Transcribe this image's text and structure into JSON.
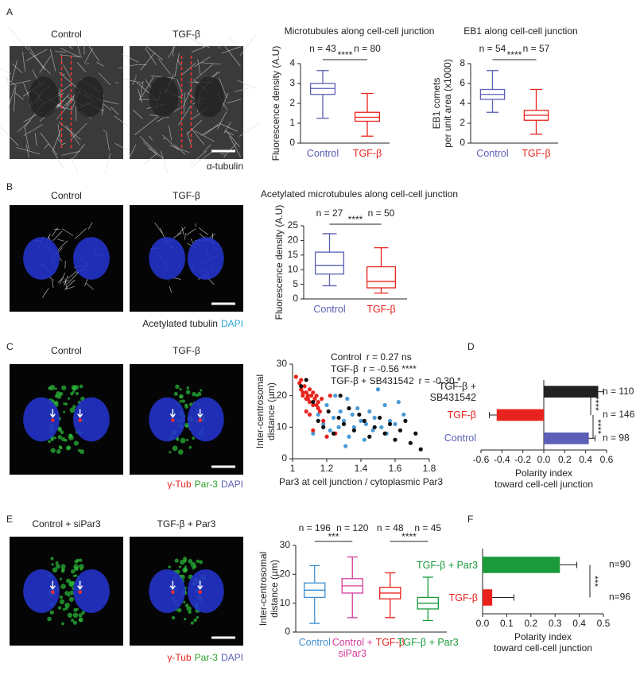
{
  "panels": [
    {
      "letter": "A",
      "images": [
        {
          "label": "Control",
          "color": "#5b5fb5"
        },
        {
          "label": "TGF-β",
          "color": "#e8231d"
        }
      ],
      "caption": [
        {
          "text": "α-tubulin",
          "color": "#222222"
        }
      ]
    },
    {
      "letter": "B",
      "images": [
        {
          "label": "Control",
          "color": "#5b5fb5"
        },
        {
          "label": "TGF-β",
          "color": "#e8231d"
        }
      ],
      "caption": [
        {
          "text": "Acetylated tubulin",
          "color": "#222222"
        },
        {
          "text": "DAPI",
          "color": "#2aa7d8"
        }
      ]
    },
    {
      "letter": "C",
      "images": [
        {
          "label": "Control",
          "color": "#5b5fb5"
        },
        {
          "label": "TGF-β",
          "color": "#e8231d"
        }
      ],
      "caption": [
        {
          "text": "γ-Tub",
          "color": "#e8231d"
        },
        {
          "text": "Par-3",
          "color": "#2ca02c"
        },
        {
          "text": "DAPI",
          "color": "#5b5fb5"
        }
      ]
    },
    {
      "letter": "D"
    },
    {
      "letter": "E",
      "images": [
        {
          "label": "Control + siPar3",
          "color": "#d43c9a"
        },
        {
          "label": "TGF-β + Par3",
          "color": "#1a9a3a"
        }
      ],
      "caption": [
        {
          "text": "γ-Tub",
          "color": "#e8231d"
        },
        {
          "text": "Par-3",
          "color": "#2ca02c"
        },
        {
          "text": "DAPI",
          "color": "#5b5fb5"
        }
      ]
    },
    {
      "letter": "F"
    }
  ],
  "chart_data": [
    {
      "type": "box",
      "title": "Microtubules along cell-cell junction",
      "ylabel": "Fluorescence density (A.U)",
      "categories": [
        "Control",
        "TGF-β"
      ],
      "colors": [
        "#5b5fb5",
        "#e8231d"
      ],
      "n_labels": [
        "n = 43",
        "n = 80"
      ],
      "boxes": [
        {
          "whislo": 1.25,
          "q1": 2.45,
          "med": 2.75,
          "q3": 3.0,
          "whishi": 3.65
        },
        {
          "whislo": 0.35,
          "q1": 1.1,
          "med": 1.3,
          "q3": 1.55,
          "whishi": 2.5
        }
      ],
      "ylim": [
        0,
        4
      ],
      "yticks": [
        0,
        1,
        2,
        3,
        4
      ],
      "significance": [
        {
          "text": "****",
          "between": [
            0,
            1
          ]
        }
      ]
    },
    {
      "type": "box",
      "title": "EB1 along cell-cell junction",
      "ylabel": [
        "EB1 comets",
        "per unit area (x1000)"
      ],
      "categories": [
        "Control",
        "TGF-β"
      ],
      "colors": [
        "#5b5fb5",
        "#e8231d"
      ],
      "n_labels": [
        "n = 54",
        "n = 57"
      ],
      "boxes": [
        {
          "whislo": 3.1,
          "q1": 4.4,
          "med": 4.9,
          "q3": 5.4,
          "whishi": 7.3
        },
        {
          "whislo": 0.9,
          "q1": 2.3,
          "med": 2.8,
          "q3": 3.3,
          "whishi": 5.4
        }
      ],
      "ylim": [
        0,
        8
      ],
      "yticks": [
        0,
        2,
        4,
        6,
        8
      ],
      "significance": [
        {
          "text": "****",
          "between": [
            0,
            1
          ]
        }
      ]
    },
    {
      "type": "box",
      "title": "Acetylated microtubules along cell-cell junction",
      "ylabel": "Fluorescence density (A.U)",
      "categories": [
        "Control",
        "TGF-β"
      ],
      "colors": [
        "#5b5fb5",
        "#e8231d"
      ],
      "n_labels": [
        "n = 27",
        "n = 50"
      ],
      "boxes": [
        {
          "whislo": 4.5,
          "q1": 8.5,
          "med": 11.5,
          "q3": 16,
          "whishi": 22.3
        },
        {
          "whislo": 2,
          "q1": 3.8,
          "med": 6,
          "q3": 11,
          "whishi": 17.5
        }
      ],
      "ylim": [
        0,
        25
      ],
      "yticks": [
        0,
        5,
        10,
        15,
        20,
        25
      ],
      "significance": [
        {
          "text": "****",
          "between": [
            0,
            1
          ]
        }
      ]
    },
    {
      "type": "scatter",
      "xlabel": "Par3 at cell junction / cytoplasmic Par3",
      "ylabel": [
        "Inter-centrosomal",
        "distance (µm)"
      ],
      "xlim": [
        1,
        1.8
      ],
      "xticks": [
        1,
        1.2,
        1.4,
        1.6,
        1.8
      ],
      "ylim": [
        0,
        30
      ],
      "yticks": [
        0,
        10,
        20,
        30
      ],
      "series": [
        {
          "name": "Control",
          "stat": "r = 0.27  ns",
          "color": "#4a9ad6",
          "x": [
            1.12,
            1.15,
            1.18,
            1.2,
            1.22,
            1.24,
            1.25,
            1.27,
            1.28,
            1.3,
            1.32,
            1.33,
            1.35,
            1.36,
            1.38,
            1.4,
            1.42,
            1.43,
            1.45,
            1.47,
            1.48,
            1.5,
            1.52,
            1.54,
            1.55,
            1.57,
            1.6,
            1.62,
            1.65,
            1.31
          ],
          "values": [
            8,
            14,
            11,
            17,
            9,
            13,
            20,
            10,
            15,
            12,
            19,
            7,
            14,
            10,
            16,
            12,
            6,
            11,
            15,
            9,
            13,
            22,
            10,
            17,
            8,
            12,
            11,
            18,
            14,
            4
          ]
        },
        {
          "name": "TGF-β",
          "stat": "r = -0.56 ****",
          "color": "#e8231d",
          "x": [
            1.02,
            1.04,
            1.05,
            1.06,
            1.06,
            1.07,
            1.08,
            1.08,
            1.09,
            1.1,
            1.1,
            1.11,
            1.12,
            1.12,
            1.13,
            1.14,
            1.15,
            1.15,
            1.16,
            1.17,
            1.18,
            1.05,
            1.08,
            1.1,
            1.12,
            1.2,
            1.22,
            1.14,
            1.09,
            1.25
          ],
          "values": [
            26,
            24,
            22,
            21,
            20,
            23,
            19,
            21,
            20,
            22,
            18,
            20,
            21,
            17,
            19,
            20,
            18,
            16,
            15,
            19,
            12,
            25,
            15,
            14,
            9,
            7,
            20,
            17,
            19,
            8
          ]
        },
        {
          "name": "TGF-β + SB431542",
          "stat": "r = -0.30 *",
          "color": "#111111",
          "x": [
            1.05,
            1.08,
            1.12,
            1.15,
            1.18,
            1.21,
            1.24,
            1.27,
            1.3,
            1.33,
            1.36,
            1.39,
            1.42,
            1.45,
            1.48,
            1.51,
            1.54,
            1.57,
            1.6,
            1.63,
            1.66,
            1.69,
            1.72,
            1.75,
            1.28
          ],
          "values": [
            23,
            25,
            18,
            12,
            10,
            15,
            8,
            13,
            11,
            16,
            9,
            14,
            12,
            7,
            10,
            13,
            8,
            11,
            6,
            9,
            12,
            5,
            8,
            3,
            20
          ]
        }
      ]
    },
    {
      "type": "hbar",
      "xlabel": [
        "Polarity index",
        "toward cell-cell junction"
      ],
      "categories": [
        "TGF-β + SB431542",
        "TGF-β",
        "Control"
      ],
      "values": [
        0.52,
        -0.45,
        0.43
      ],
      "errors": [
        0.05,
        0.07,
        0.06
      ],
      "colors": [
        "#222222",
        "#e8231d",
        "#5b5fb5"
      ],
      "n_labels": [
        "n = 110",
        "n = 146",
        "n = 98"
      ],
      "xlim": [
        -0.6,
        0.6
      ],
      "xticks": [
        -0.6,
        -0.4,
        -0.2,
        {
          "value": 0,
          "label": "0.0"
        },
        0.2,
        0.4,
        0.6
      ],
      "significance": [
        {
          "text": "****",
          "between": [
            0,
            1
          ]
        },
        {
          "text": "****",
          "between": [
            1,
            2
          ]
        }
      ]
    },
    {
      "type": "box",
      "ylabel": [
        "Inter-centrosomal",
        "distance (µm)"
      ],
      "categories": [
        "Control",
        "Control + siPar3",
        "TGF-β",
        "TGF-β + Par3"
      ],
      "colors": [
        "#3d8fd0",
        "#d43c9a",
        "#e8231d",
        "#1a9a3a"
      ],
      "n_labels": [
        "n = 196",
        "n = 120",
        "n = 48",
        "n = 45"
      ],
      "boxes": [
        {
          "whislo": 3,
          "q1": 12,
          "med": 14.5,
          "q3": 17,
          "whishi": 23
        },
        {
          "whislo": 5,
          "q1": 13.5,
          "med": 16,
          "q3": 18.5,
          "whishi": 26
        },
        {
          "whislo": 5,
          "q1": 11.5,
          "med": 13.5,
          "q3": 15.5,
          "whishi": 20.5
        },
        {
          "whislo": 4,
          "q1": 8,
          "med": 10,
          "q3": 12,
          "whishi": 19
        }
      ],
      "ylim": [
        0,
        30
      ],
      "yticks": [
        0,
        10,
        20,
        30
      ],
      "significance": [
        {
          "text": "***",
          "between": [
            0,
            1
          ]
        },
        {
          "text": "****",
          "between": [
            2,
            3
          ]
        }
      ]
    },
    {
      "type": "hbar",
      "xlabel": [
        "Polarity index",
        "toward cell-cell junction"
      ],
      "categories": [
        "TGF-β + Par3",
        "TGF-β"
      ],
      "values": [
        0.32,
        0.04
      ],
      "errors": [
        0.07,
        0.09
      ],
      "colors": [
        "#1a9a3a",
        "#e8231d"
      ],
      "n_labels": [
        "n=90",
        "n=96"
      ],
      "xlim": [
        0,
        0.5
      ],
      "xticks": [
        {
          "value": 0,
          "label": "0.0"
        },
        0.1,
        0.2,
        0.3,
        0.4,
        0.5
      ],
      "significance": [
        {
          "text": "***",
          "between": [
            0,
            1
          ]
        }
      ]
    }
  ]
}
